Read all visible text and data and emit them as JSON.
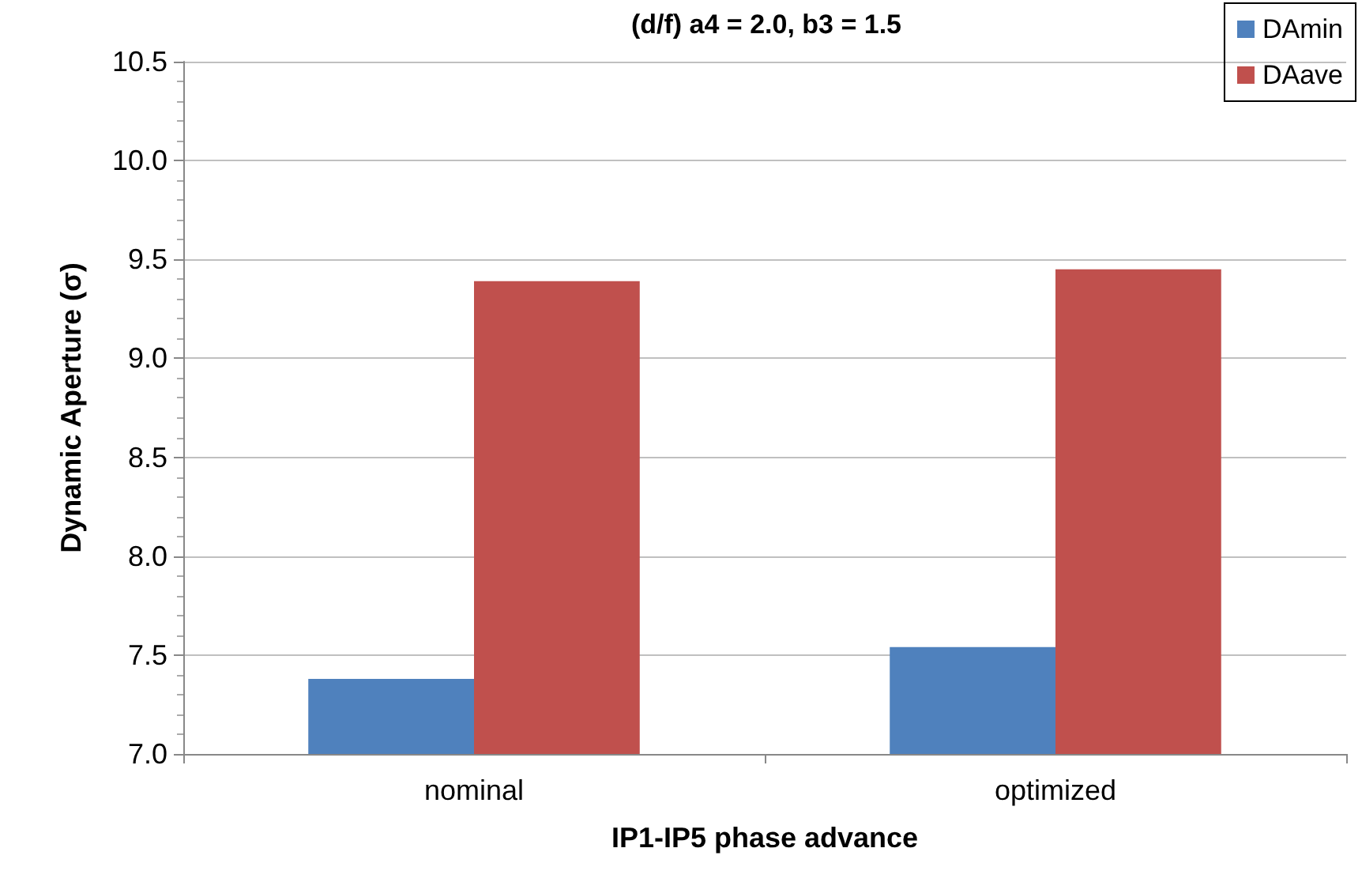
{
  "chart_data": {
    "type": "bar",
    "title": "(d/f) a4 = 2.0, b3 = 1.5",
    "xlabel": "IP1-IP5 phase advance",
    "ylabel": "Dynamic Aperture (σ)",
    "categories": [
      "nominal",
      "optimized"
    ],
    "series": [
      {
        "name": "DAmin",
        "color": "#4f81bd",
        "values": [
          7.38,
          7.54
        ]
      },
      {
        "name": "DAave",
        "color": "#c0504d",
        "values": [
          9.39,
          9.45
        ]
      }
    ],
    "ylim": [
      7.0,
      10.5
    ],
    "yticks": [
      {
        "value": 7.0,
        "label": "7.0"
      },
      {
        "value": 7.5,
        "label": "7.5"
      },
      {
        "value": 8.0,
        "label": "8.0"
      },
      {
        "value": 8.5,
        "label": "8.5"
      },
      {
        "value": 9.0,
        "label": "9.0"
      },
      {
        "value": 9.5,
        "label": "9.5"
      },
      {
        "value": 10.0,
        "label": "10.0"
      },
      {
        "value": 10.5,
        "label": "10.5"
      }
    ],
    "grid": "y",
    "legend": "top right"
  }
}
